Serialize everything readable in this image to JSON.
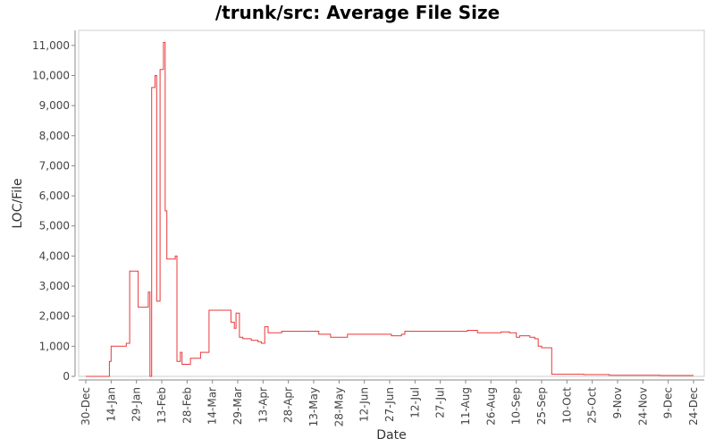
{
  "chart_data": {
    "type": "line",
    "title": "/trunk/src: Average File Size",
    "xlabel": "Date",
    "ylabel": "LOC/File",
    "ylim": [
      0,
      11500
    ],
    "y_ticks": [
      "0",
      "1,000",
      "2,000",
      "3,000",
      "4,000",
      "5,000",
      "6,000",
      "7,000",
      "8,000",
      "9,000",
      "10,000",
      "11,000"
    ],
    "x_tick_labels": [
      "30-Dec",
      "14-Jan",
      "29-Jan",
      "13-Feb",
      "28-Feb",
      "14-Mar",
      "29-Mar",
      "13-Apr",
      "28-Apr",
      "13-May",
      "28-May",
      "12-Jun",
      "27-Jun",
      "12-Jul",
      "27-Jul",
      "11-Aug",
      "26-Aug",
      "10-Sep",
      "25-Sep",
      "10-Oct",
      "25-Oct",
      "9-Nov",
      "24-Nov",
      "9-Dec",
      "24-Dec"
    ],
    "grid": false,
    "line_color": "#e8393a",
    "series": [
      {
        "x_day": [
          0,
          14,
          14,
          15,
          15,
          18,
          18,
          24,
          24,
          26,
          26,
          31,
          31,
          35,
          35,
          37,
          37,
          38,
          38,
          39,
          39,
          41,
          41,
          42,
          42,
          44,
          44,
          46,
          46,
          47,
          47,
          48,
          48,
          53,
          53,
          54,
          54,
          56,
          56,
          57,
          57,
          58,
          58,
          62,
          62,
          68,
          68,
          73,
          73,
          86,
          86,
          88,
          88,
          89,
          89,
          91,
          91,
          93,
          93,
          98,
          98,
          102,
          102,
          104,
          104,
          106,
          106,
          108,
          108,
          116,
          116,
          130,
          130,
          138,
          138,
          145,
          145,
          155,
          155,
          175,
          175,
          181,
          181,
          187,
          187,
          189,
          189,
          210,
          210,
          226,
          226,
          232,
          232,
          246,
          246,
          251,
          251,
          255,
          255,
          257,
          257,
          263,
          263,
          266,
          266,
          268,
          268,
          270,
          270,
          276,
          276,
          282,
          282,
          295,
          295,
          310,
          310,
          340,
          340,
          360
        ],
        "y": [
          0,
          0,
          500,
          500,
          1000,
          1000,
          1000,
          1000,
          1100,
          1100,
          3500,
          3500,
          2300,
          2300,
          2300,
          2300,
          2800,
          2800,
          0,
          0,
          9600,
          9600,
          10000,
          10000,
          2500,
          2500,
          10200,
          10200,
          11100,
          11100,
          5500,
          5500,
          3900,
          3900,
          4000,
          4000,
          500,
          500,
          800,
          800,
          400,
          400,
          400,
          400,
          600,
          600,
          800,
          800,
          2200,
          2200,
          1800,
          1800,
          1600,
          1600,
          2100,
          2100,
          1300,
          1300,
          1250,
          1250,
          1200,
          1200,
          1150,
          1150,
          1100,
          1100,
          1650,
          1650,
          1450,
          1450,
          1500,
          1500,
          1500,
          1500,
          1400,
          1400,
          1300,
          1300,
          1400,
          1400,
          1400,
          1400,
          1350,
          1350,
          1400,
          1400,
          1500,
          1500,
          1500,
          1500,
          1530,
          1530,
          1450,
          1450,
          1480,
          1480,
          1450,
          1450,
          1300,
          1300,
          1350,
          1350,
          1300,
          1300,
          1250,
          1250,
          1000,
          1000,
          950,
          950,
          70,
          70,
          70,
          70,
          60,
          60,
          40,
          40,
          30,
          30
        ]
      }
    ]
  }
}
